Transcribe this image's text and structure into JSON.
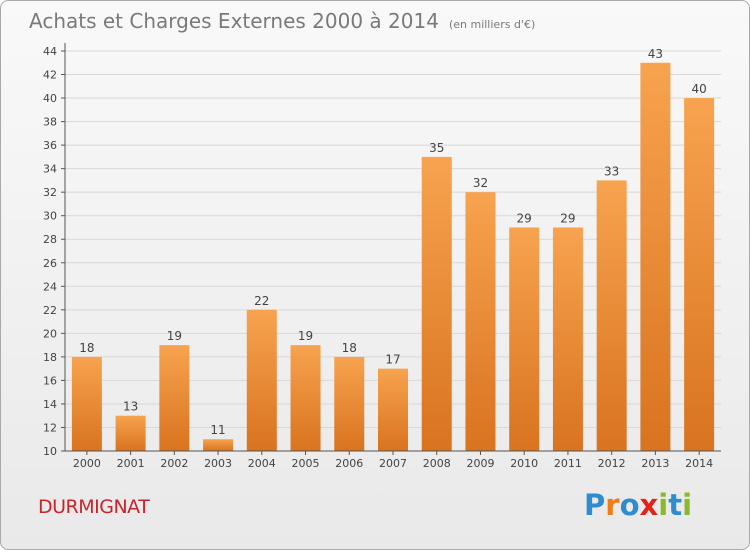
{
  "title": {
    "main": "Achats et Charges Externes 2000 à 2014",
    "unit": "(en milliers d'€)"
  },
  "location": "DURMIGNAT",
  "logo": {
    "letters": [
      {
        "char": "P",
        "color": "#2e8ccf"
      },
      {
        "char": "r",
        "color": "#ef7d1a"
      },
      {
        "char": "o",
        "color": "#2e8ccf"
      },
      {
        "char": "x",
        "color": "#e2231a"
      },
      {
        "char": "i",
        "color": "#8ab929"
      },
      {
        "char": "t",
        "color": "#2e8ccf"
      },
      {
        "char": "i",
        "color": "#8ab929"
      }
    ]
  },
  "colors": {
    "bar_light": "#f7a34f",
    "bar_dark": "#d9731f",
    "axis": "#555555",
    "grid": "#d8d8d8"
  },
  "chart_data": {
    "type": "bar",
    "title": "Achats et Charges Externes 2000 à 2014",
    "subtitle": "(en milliers d'€)",
    "categories": [
      "2000",
      "2001",
      "2002",
      "2003",
      "2004",
      "2005",
      "2006",
      "2007",
      "2008",
      "2009",
      "2010",
      "2011",
      "2012",
      "2013",
      "2014"
    ],
    "values": [
      18,
      13,
      19,
      11,
      22,
      19,
      18,
      17,
      35,
      32,
      29,
      29,
      33,
      43,
      40
    ],
    "ylim": [
      10,
      44
    ],
    "yticks": [
      10,
      12,
      14,
      16,
      18,
      20,
      22,
      24,
      26,
      28,
      30,
      32,
      34,
      36,
      38,
      40,
      42,
      44
    ],
    "grid": true,
    "legend": "none"
  }
}
